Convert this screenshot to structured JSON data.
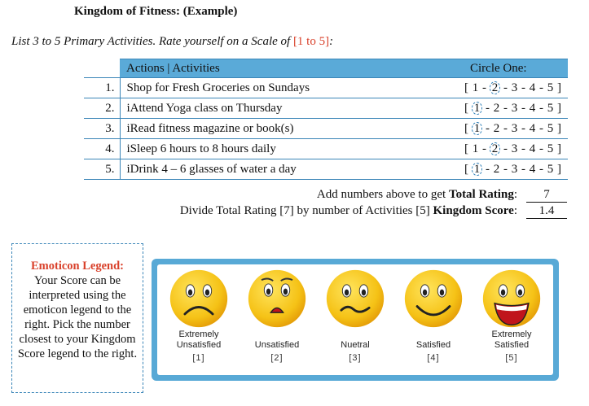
{
  "title": "Kingdom of Fitness: (Example)",
  "instruction": {
    "prefix": "List 3 to 5 Primary Activities. Rate yourself on a Scale of ",
    "scale": "[1 to 5]",
    "suffix": ":"
  },
  "table": {
    "header_activities": "Actions | Activities",
    "header_rating": "Circle One:",
    "rows": [
      {
        "num": "1.",
        "activity": "Shop for Fresh Groceries on Sundays",
        "selected": 2
      },
      {
        "num": "2.",
        "activity": "iAttend Yoga class on Thursday",
        "selected": 1
      },
      {
        "num": "3.",
        "activity": "iRead fitness magazine or book(s)",
        "selected": 1
      },
      {
        "num": "4.",
        "activity": "iSleep 6 hours to 8 hours daily",
        "selected": 2
      },
      {
        "num": "5.",
        "activity": "iDrink 4 – 6 glasses of water a day",
        "selected": 1
      }
    ]
  },
  "summary": {
    "line1_text": "Add numbers above to get ",
    "line1_bold": "Total Rating",
    "line1_colon": ":",
    "line1_value": "7",
    "line2_text": "Divide Total Rating [7] by number of Activities [5] ",
    "line2_bold": "Kingdom Score",
    "line2_colon": ":",
    "line2_value": "1.4"
  },
  "legend": {
    "title": "Emoticon Legend:",
    "body": "Your Score can be interpreted using the emoticon legend to the right. Pick the number closest to your Kingdom Score legend to the right."
  },
  "emoticons": [
    {
      "label": "Extremely Unsatisfied",
      "index": "[1]",
      "icon": "very-sad-face-icon"
    },
    {
      "label": "Unsatisfied",
      "index": "[2]",
      "icon": "shocked-face-icon"
    },
    {
      "label": "Nuetral",
      "index": "[3]",
      "icon": "neutral-face-icon"
    },
    {
      "label": "Satisfied",
      "index": "[4]",
      "icon": "smile-face-icon"
    },
    {
      "label": "Extremely Satisfied",
      "index": "[5]",
      "icon": "big-grin-face-icon"
    }
  ],
  "colors": {
    "accent_blue": "#5aaad8",
    "legend_red": "#d9412b",
    "face_yellow": "#f5c216"
  }
}
